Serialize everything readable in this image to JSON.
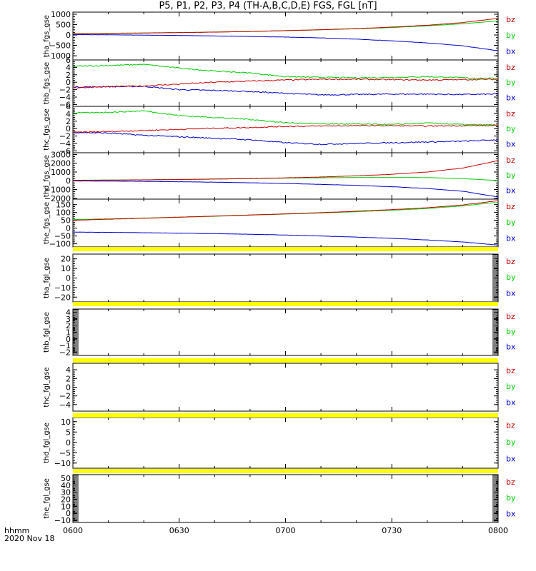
{
  "title": "P5, P1, P2, P3, P4 (TH-A,B,C,D,E) FGS, FGL [nT]",
  "time_axis": {
    "label_line1": "hhmm",
    "label_line2": "2020 Nov 18",
    "ticks": [
      "0600",
      "0630",
      "0700",
      "0730",
      "0800"
    ]
  },
  "colors": {
    "bz": "#cc0000",
    "by": "#00cc00",
    "bx": "#0000cc",
    "bar": "#ffff00",
    "frame": "#000000"
  },
  "chart_data": [
    {
      "type": "line",
      "ylabel": "tha_fgs_gse",
      "ylim": [
        -1200,
        1100
      ],
      "yticks": [
        1000,
        500,
        0,
        -500,
        -1000
      ],
      "yticklabels": [
        "1000",
        "500",
        "0",
        "−500",
        "−1000"
      ],
      "x": [
        "0600",
        "0610",
        "0620",
        "0630",
        "0640",
        "0650",
        "0700",
        "0710",
        "0720",
        "0730",
        "0740",
        "0750",
        "0800"
      ],
      "series": [
        {
          "name": "bz",
          "values": [
            60,
            75,
            95,
            115,
            140,
            170,
            210,
            255,
            310,
            380,
            470,
            600,
            800
          ]
        },
        {
          "name": "by",
          "values": [
            70,
            82,
            100,
            118,
            142,
            170,
            208,
            250,
            300,
            360,
            440,
            540,
            680
          ]
        },
        {
          "name": "bx",
          "values": [
            20,
            10,
            -5,
            -20,
            -45,
            -70,
            -100,
            -140,
            -200,
            -280,
            -380,
            -520,
            -760
          ]
        }
      ]
    },
    {
      "type": "line",
      "ylabel": "thb_fgs_gse",
      "ylim": [
        -6.5,
        6
      ],
      "yticks": [
        6,
        4,
        2,
        0,
        -2,
        -4,
        -6
      ],
      "yticklabels": [
        "6",
        "4",
        "2",
        "0",
        "−2",
        "−4",
        "−6"
      ],
      "x": [
        "0600",
        "0610",
        "0620",
        "0630",
        "0640",
        "0650",
        "0700",
        "0710",
        "0720",
        "0730",
        "0740",
        "0750",
        "0800"
      ],
      "series": [
        {
          "name": "bz",
          "values": [
            -1.5,
            -1.2,
            -1.0,
            -0.5,
            0.0,
            0.3,
            0.6,
            0.8,
            0.8,
            0.7,
            0.6,
            0.7,
            0.8
          ]
        },
        {
          "name": "by",
          "values": [
            4.3,
            4.5,
            4.8,
            3.8,
            3.0,
            2.5,
            1.5,
            1.3,
            1.2,
            1.3,
            1.5,
            1.2,
            1.0
          ]
        },
        {
          "name": "bx",
          "values": [
            -1.3,
            -1.2,
            -1.1,
            -2.0,
            -2.2,
            -2.5,
            -3.0,
            -3.4,
            -3.3,
            -3.2,
            -3.2,
            -3.3,
            -3.2
          ]
        }
      ]
    },
    {
      "type": "line",
      "ylabel": "thc_fgs_gse",
      "ylim": [
        -6.5,
        6
      ],
      "yticks": [
        6,
        4,
        2,
        0,
        -2,
        -4,
        -6
      ],
      "yticklabels": [
        "6",
        "4",
        "2",
        "0",
        "−2",
        "−4",
        "−6"
      ],
      "x": [
        "0600",
        "0610",
        "0620",
        "0630",
        "0640",
        "0650",
        "0700",
        "0710",
        "0720",
        "0730",
        "0740",
        "0750",
        "0800"
      ],
      "series": [
        {
          "name": "bz",
          "values": [
            -1.0,
            -0.8,
            -0.5,
            -0.2,
            0.1,
            0.3,
            0.6,
            0.7,
            0.8,
            0.8,
            0.7,
            0.8,
            0.8
          ]
        },
        {
          "name": "by",
          "values": [
            4.2,
            4.4,
            4.8,
            3.5,
            3.0,
            2.5,
            1.6,
            1.3,
            1.2,
            1.1,
            1.5,
            1.1,
            1.0
          ]
        },
        {
          "name": "bx",
          "values": [
            -1.0,
            -1.2,
            -1.8,
            -2.2,
            -2.6,
            -3.0,
            -3.8,
            -4.2,
            -4.0,
            -3.8,
            -3.6,
            -3.4,
            -3.0
          ]
        }
      ]
    },
    {
      "type": "line",
      "ylabel": "thd_fgs_gse",
      "ylim": [
        -2100,
        3200
      ],
      "yticks": [
        3000,
        2000,
        1000,
        0,
        -1000,
        -2000
      ],
      "yticklabels": [
        "3000",
        "2000",
        "1000",
        "0",
        "−1000",
        "−2000"
      ],
      "x": [
        "0600",
        "0610",
        "0620",
        "0630",
        "0640",
        "0650",
        "0700",
        "0710",
        "0720",
        "0730",
        "0740",
        "0750",
        "0800"
      ],
      "series": [
        {
          "name": "bz",
          "values": [
            50,
            70,
            100,
            140,
            190,
            250,
            330,
            430,
            560,
            740,
            1000,
            1450,
            2300
          ]
        },
        {
          "name": "by",
          "values": [
            60,
            80,
            110,
            150,
            200,
            250,
            300,
            340,
            370,
            380,
            360,
            250,
            20
          ]
        },
        {
          "name": "bx",
          "values": [
            -20,
            -40,
            -70,
            -110,
            -160,
            -230,
            -310,
            -410,
            -530,
            -680,
            -880,
            -1200,
            -1850
          ]
        }
      ]
    },
    {
      "type": "line",
      "ylabel": "the_fgs_gse",
      "ylim": [
        -120,
        185
      ],
      "yticks": [
        150,
        100,
        50,
        0,
        -50,
        -100
      ],
      "yticklabels": [
        "150",
        "100",
        "50",
        "0",
        "−50",
        "−100"
      ],
      "extra_ytick_labels": [
        "200",
        "150",
        "100",
        "50",
        "0",
        "−50",
        "−100"
      ],
      "x": [
        "0600",
        "0610",
        "0620",
        "0630",
        "0640",
        "0650",
        "0700",
        "0710",
        "0720",
        "0730",
        "0740",
        "0750",
        "0800"
      ],
      "series": [
        {
          "name": "bz",
          "values": [
            50,
            57,
            63,
            70,
            77,
            84,
            91,
            99,
            108,
            118,
            130,
            148,
            175
          ]
        },
        {
          "name": "by",
          "values": [
            55,
            59,
            64,
            70,
            76,
            83,
            90,
            97,
            105,
            114,
            125,
            142,
            165
          ]
        },
        {
          "name": "bx",
          "values": [
            -25,
            -27,
            -29,
            -32,
            -35,
            -39,
            -44,
            -50,
            -57,
            -65,
            -75,
            -88,
            -108
          ]
        }
      ]
    },
    {
      "type": "line",
      "ylabel": "tha_fgl_gse",
      "ylim": [
        -25,
        25
      ],
      "yticks": [
        20,
        10,
        0,
        -10,
        -20
      ],
      "yticklabels": [
        "20",
        "10",
        "0",
        "−10",
        "−20"
      ],
      "dense_edges": [
        "right"
      ],
      "series": []
    },
    {
      "type": "line",
      "ylabel": "thb_fgl_gse",
      "ylim": [
        -2.5,
        4.5
      ],
      "yticks": [
        4,
        3,
        2,
        1,
        0,
        -1,
        -2
      ],
      "yticklabels": [
        "4",
        "3",
        "2",
        "1",
        "0",
        "−1",
        "−2"
      ],
      "dense_edges": [
        "left",
        "right"
      ],
      "series": []
    },
    {
      "type": "line",
      "ylabel": "thc_fgl_gse",
      "ylim": [
        -5.5,
        5.5
      ],
      "yticks": [
        4,
        2,
        0,
        -2,
        -4
      ],
      "yticklabels": [
        "4",
        "2",
        "0",
        "−2",
        "−4"
      ],
      "dense_edges": [],
      "series": []
    },
    {
      "type": "line",
      "ylabel": "thd_fgl_gse",
      "ylim": [
        -12.5,
        12
      ],
      "yticks": [
        10,
        5,
        0,
        -5,
        -10
      ],
      "yticklabels": [
        "10",
        "5",
        "0",
        "−5",
        "−10"
      ],
      "dense_edges": [],
      "series": []
    },
    {
      "type": "line",
      "ylabel": "the_fgl_gse",
      "ylim": [
        -13,
        55
      ],
      "yticks": [
        50,
        40,
        30,
        20,
        10,
        0,
        -10
      ],
      "yticklabels": [
        "50",
        "40",
        "30",
        "20",
        "10",
        "0",
        "−10"
      ],
      "dense_edges": [
        "left",
        "right"
      ],
      "series": []
    }
  ],
  "legend_labels": [
    "bz",
    "by",
    "bx"
  ]
}
